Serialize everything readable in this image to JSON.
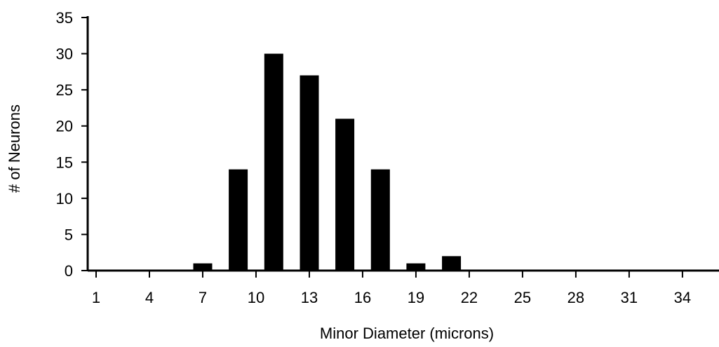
{
  "chart_data": {
    "type": "bar",
    "title": "",
    "xlabel": "Minor Diameter (microns)",
    "ylabel": "# of Neurons",
    "x_tick_labels": [
      "1",
      "4",
      "7",
      "10",
      "13",
      "16",
      "19",
      "22",
      "25",
      "28",
      "31",
      "34"
    ],
    "y_tick_labels": [
      "0",
      "5",
      "10",
      "15",
      "20",
      "25",
      "30",
      "35"
    ],
    "ylim": [
      0,
      35
    ],
    "grid": false,
    "categories": [
      "1",
      "2",
      "3",
      "4",
      "5",
      "6",
      "7",
      "8",
      "9",
      "10",
      "11",
      "12",
      "13",
      "14",
      "15",
      "16",
      "17",
      "18",
      "19",
      "20",
      "21",
      "22",
      "23",
      "24",
      "25",
      "26",
      "27",
      "28",
      "29",
      "30",
      "31",
      "32",
      "33",
      "34",
      "35"
    ],
    "series": [
      {
        "values": [
          0,
          0,
          0,
          0,
          0,
          0,
          1,
          0,
          14,
          0,
          30,
          0,
          27,
          0,
          21,
          0,
          14,
          0,
          1,
          0,
          2,
          0,
          0,
          0,
          0,
          0,
          0,
          0,
          0,
          0,
          0,
          0,
          0,
          0,
          0
        ],
        "color": "#000000"
      }
    ]
  }
}
